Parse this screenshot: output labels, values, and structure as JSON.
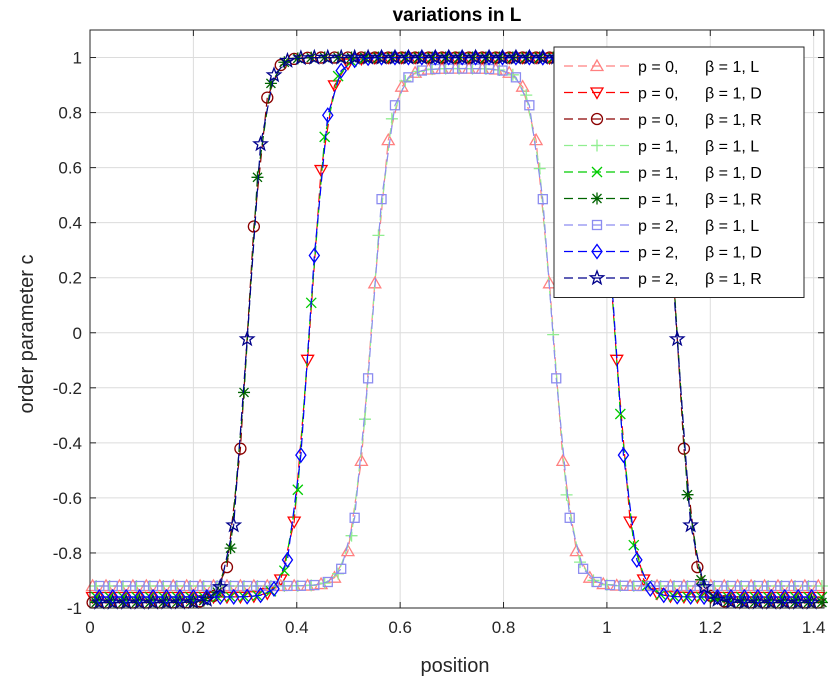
{
  "chart_data": {
    "type": "line",
    "title": "variations in L",
    "xlabel": "position",
    "ylabel": "order parameter c",
    "xlim": [
      0,
      1.42
    ],
    "ylim": [
      -1,
      1.1
    ],
    "grid": true,
    "legend_position": "top-right",
    "x_ticks": [
      {
        "value": 0,
        "label": "0"
      },
      {
        "value": 0.2,
        "label": "0.2"
      },
      {
        "value": 0.4,
        "label": "0.4"
      },
      {
        "value": 0.6,
        "label": "0.6"
      },
      {
        "value": 0.8,
        "label": "0.8"
      },
      {
        "value": 1.0,
        "label": "1"
      },
      {
        "value": 1.2,
        "label": "1.2"
      },
      {
        "value": 1.4,
        "label": "1.4"
      }
    ],
    "y_ticks": [
      {
        "value": -1,
        "label": "-1"
      },
      {
        "value": -0.8,
        "label": "-0.8"
      },
      {
        "value": -0.6,
        "label": "-0.6"
      },
      {
        "value": -0.4,
        "label": "-0.4"
      },
      {
        "value": -0.2,
        "label": "-0.2"
      },
      {
        "value": 0,
        "label": "0"
      },
      {
        "value": 0.2,
        "label": "0.2"
      },
      {
        "value": 0.4,
        "label": "0.4"
      },
      {
        "value": 0.6,
        "label": "0.6"
      },
      {
        "value": 0.8,
        "label": "0.8"
      },
      {
        "value": 1,
        "label": "1"
      }
    ],
    "series": [
      {
        "name": "p = 0,   β = 1, L",
        "p_label": "p = 0,",
        "beta_label": "β = 1, L",
        "color": "#ff8080",
        "marker": "triangle-up",
        "group": "L",
        "center": 0.72,
        "half_width": 0.175,
        "steep": 0.035,
        "min": -0.92,
        "max": 0.96,
        "x_start": 0.005,
        "x_end": 1.42,
        "dx": 0.026
      },
      {
        "name": "p = 0,   β = 1, D",
        "p_label": "p = 0,",
        "beta_label": "β = 1, D",
        "color": "#ff0000",
        "marker": "triangle-down",
        "group": "D",
        "center": 0.72,
        "half_width": 0.295,
        "steep": 0.033,
        "min": -0.96,
        "max": 1.0,
        "x_start": 0.005,
        "x_end": 1.42,
        "dx": 0.026
      },
      {
        "name": "p = 0,   β = 1, R",
        "p_label": "p = 0,",
        "beta_label": "β = 1, R",
        "color": "#8b0000",
        "marker": "circle",
        "group": "R",
        "center": 0.72,
        "half_width": 0.415,
        "steep": 0.03,
        "min": -0.98,
        "max": 1.0,
        "x_start": 0.005,
        "x_end": 1.42,
        "dx": 0.026
      },
      {
        "name": "p = 1,   β = 1, L",
        "p_label": "p = 1,",
        "beta_label": "β = 1, L",
        "color": "#90ee90",
        "marker": "plus",
        "group": "L",
        "center": 0.72,
        "half_width": 0.175,
        "steep": 0.035,
        "min": -0.92,
        "max": 0.96,
        "x_start": 0.012,
        "x_end": 1.42,
        "dx": 0.026
      },
      {
        "name": "p = 1,   β = 1, D",
        "p_label": "p = 1,",
        "beta_label": "β = 1, D",
        "color": "#00cc00",
        "marker": "cross",
        "group": "D",
        "center": 0.72,
        "half_width": 0.295,
        "steep": 0.033,
        "min": -0.96,
        "max": 1.0,
        "x_start": 0.012,
        "x_end": 1.42,
        "dx": 0.026
      },
      {
        "name": "p = 1,   β = 1, R",
        "p_label": "p = 1,",
        "beta_label": "β = 1, R",
        "color": "#006400",
        "marker": "asterisk",
        "group": "R",
        "center": 0.72,
        "half_width": 0.415,
        "steep": 0.03,
        "min": -0.98,
        "max": 1.0,
        "x_start": 0.012,
        "x_end": 1.42,
        "dx": 0.026
      },
      {
        "name": "p = 2,   β = 1, L",
        "p_label": "p = 2,",
        "beta_label": "β = 1, L",
        "color": "#8c8cf0",
        "marker": "square",
        "group": "L",
        "center": 0.72,
        "half_width": 0.175,
        "steep": 0.035,
        "min": -0.92,
        "max": 0.96,
        "x_start": 0.018,
        "x_end": 1.42,
        "dx": 0.026
      },
      {
        "name": "p = 2,   β = 1, D",
        "p_label": "p = 2,",
        "beta_label": "β = 1, D",
        "color": "#0000ff",
        "marker": "diamond",
        "group": "D",
        "center": 0.72,
        "half_width": 0.295,
        "steep": 0.033,
        "min": -0.96,
        "max": 1.0,
        "x_start": 0.018,
        "x_end": 1.42,
        "dx": 0.026
      },
      {
        "name": "p = 2,   β = 1, R",
        "p_label": "p = 2,",
        "beta_label": "β = 1, R",
        "color": "#00008b",
        "marker": "pentagram",
        "group": "R",
        "center": 0.72,
        "half_width": 0.415,
        "steep": 0.03,
        "min": -0.98,
        "max": 1.0,
        "x_start": 0.018,
        "x_end": 1.42,
        "dx": 0.026
      }
    ]
  }
}
